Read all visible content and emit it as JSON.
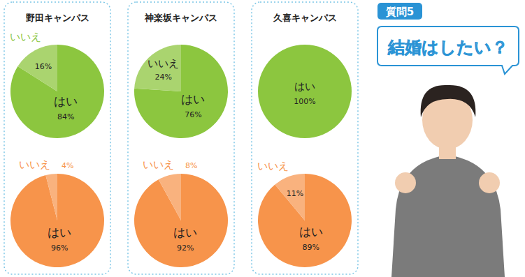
{
  "header": {
    "tag": "質問5",
    "question": "結婚はしたい？"
  },
  "chart_data": [
    {
      "type": "pie",
      "title": "野田キャンパス",
      "categories": [
        "はい",
        "いいえ"
      ],
      "values": [
        84,
        16
      ],
      "value_labels": [
        "84%",
        "16%"
      ],
      "colors": [
        "#8cc63f",
        "#aad46f"
      ],
      "data_labels": true
    },
    {
      "type": "pie",
      "categories": [
        "はい",
        "いいえ"
      ],
      "values": [
        96,
        4
      ],
      "value_labels": [
        "96%",
        "4%"
      ],
      "colors": [
        "#f7944b",
        "#f9b27e"
      ],
      "data_labels": true
    },
    {
      "type": "pie",
      "title": "神楽坂キャンパス",
      "categories": [
        "はい",
        "いいえ"
      ],
      "values": [
        76,
        24
      ],
      "value_labels": [
        "76%",
        "24%"
      ],
      "colors": [
        "#8cc63f",
        "#aad46f"
      ],
      "data_labels": true
    },
    {
      "type": "pie",
      "categories": [
        "はい",
        "いいえ"
      ],
      "values": [
        92,
        8
      ],
      "value_labels": [
        "92%",
        "8%"
      ],
      "colors": [
        "#f7944b",
        "#f9b27e"
      ],
      "data_labels": true
    },
    {
      "type": "pie",
      "title": "久喜キャンパス",
      "categories": [
        "はい"
      ],
      "values": [
        100
      ],
      "value_labels": [
        "100%"
      ],
      "colors": [
        "#8cc63f"
      ],
      "data_labels": true
    },
    {
      "type": "pie",
      "categories": [
        "はい",
        "いいえ"
      ],
      "values": [
        89,
        11
      ],
      "value_labels": [
        "89%",
        "11%"
      ],
      "colors": [
        "#f7944b",
        "#f9b27e"
      ],
      "data_labels": true
    }
  ]
}
